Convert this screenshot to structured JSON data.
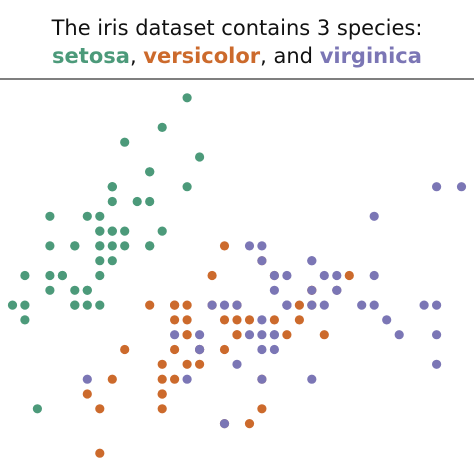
{
  "title": {
    "line1": "The iris dataset contains 3 species:",
    "setosa": "setosa",
    "sep1": ", ",
    "versicolor": "versicolor",
    "sep2": ", and ",
    "virginica": "virginica"
  },
  "colors": {
    "setosa": "#4c9a7a",
    "versicolor": "#cc6a2c",
    "virginica": "#7b76b5",
    "axis_line": "#333333"
  },
  "chart_data": {
    "type": "scatter",
    "title": "The iris dataset contains 3 species: setosa, versicolor, and virginica",
    "xlabel": "",
    "ylabel": "",
    "xlim": [
      4.2,
      8.0
    ],
    "ylim": [
      1.9,
      4.5
    ],
    "grid": false,
    "legend": "none",
    "series": [
      {
        "name": "setosa",
        "points": [
          [
            5.1,
            3.5
          ],
          [
            4.9,
            3.0
          ],
          [
            4.7,
            3.2
          ],
          [
            4.6,
            3.1
          ],
          [
            5.0,
            3.6
          ],
          [
            5.4,
            3.9
          ],
          [
            4.6,
            3.4
          ],
          [
            5.0,
            3.4
          ],
          [
            4.4,
            2.9
          ],
          [
            4.9,
            3.1
          ],
          [
            5.4,
            3.7
          ],
          [
            4.8,
            3.4
          ],
          [
            4.8,
            3.0
          ],
          [
            4.3,
            3.0
          ],
          [
            5.8,
            4.0
          ],
          [
            5.7,
            4.4
          ],
          [
            5.4,
            3.9
          ],
          [
            5.1,
            3.5
          ],
          [
            5.7,
            3.8
          ],
          [
            5.1,
            3.8
          ],
          [
            5.4,
            3.4
          ],
          [
            5.1,
            3.7
          ],
          [
            4.6,
            3.6
          ],
          [
            5.1,
            3.3
          ],
          [
            4.8,
            3.4
          ],
          [
            5.0,
            3.0
          ],
          [
            5.0,
            3.4
          ],
          [
            5.2,
            3.5
          ],
          [
            5.2,
            3.4
          ],
          [
            4.7,
            3.2
          ],
          [
            4.8,
            3.1
          ],
          [
            5.4,
            3.4
          ],
          [
            5.2,
            4.1
          ],
          [
            5.5,
            4.2
          ],
          [
            4.9,
            3.1
          ],
          [
            5.0,
            3.2
          ],
          [
            5.5,
            3.5
          ],
          [
            4.9,
            3.6
          ],
          [
            4.4,
            3.0
          ],
          [
            5.1,
            3.4
          ],
          [
            5.0,
            3.5
          ],
          [
            4.5,
            2.3
          ],
          [
            4.4,
            3.2
          ],
          [
            5.0,
            3.5
          ],
          [
            5.1,
            3.8
          ],
          [
            4.8,
            3.0
          ],
          [
            5.1,
            3.8
          ],
          [
            4.6,
            3.2
          ],
          [
            5.3,
            3.7
          ],
          [
            5.0,
            3.3
          ]
        ]
      },
      {
        "name": "versicolor",
        "points": [
          [
            7.0,
            3.2
          ],
          [
            6.4,
            3.2
          ],
          [
            6.9,
            3.1
          ],
          [
            5.5,
            2.3
          ],
          [
            6.5,
            2.8
          ],
          [
            5.7,
            2.8
          ],
          [
            6.3,
            3.3
          ],
          [
            4.9,
            2.4
          ],
          [
            6.6,
            2.9
          ],
          [
            5.2,
            2.7
          ],
          [
            5.0,
            2.0
          ],
          [
            5.9,
            3.0
          ],
          [
            6.0,
            2.2
          ],
          [
            6.1,
            2.9
          ],
          [
            5.6,
            2.9
          ],
          [
            6.7,
            3.1
          ],
          [
            5.6,
            3.0
          ],
          [
            5.8,
            2.7
          ],
          [
            6.2,
            2.2
          ],
          [
            5.6,
            2.5
          ],
          [
            5.9,
            3.2
          ],
          [
            6.1,
            2.8
          ],
          [
            6.3,
            2.5
          ],
          [
            6.1,
            2.8
          ],
          [
            6.4,
            2.9
          ],
          [
            6.6,
            3.0
          ],
          [
            6.8,
            2.8
          ],
          [
            6.7,
            3.0
          ],
          [
            6.0,
            2.9
          ],
          [
            5.7,
            2.6
          ],
          [
            5.5,
            2.4
          ],
          [
            5.5,
            2.4
          ],
          [
            5.8,
            2.7
          ],
          [
            6.0,
            2.7
          ],
          [
            5.4,
            3.0
          ],
          [
            6.0,
            3.4
          ],
          [
            6.7,
            3.1
          ],
          [
            6.3,
            2.3
          ],
          [
            5.6,
            3.0
          ],
          [
            5.5,
            2.5
          ],
          [
            5.5,
            2.6
          ],
          [
            6.1,
            3.0
          ],
          [
            5.8,
            2.6
          ],
          [
            5.0,
            2.3
          ],
          [
            5.6,
            2.7
          ],
          [
            5.7,
            3.0
          ],
          [
            5.7,
            2.9
          ],
          [
            6.2,
            2.9
          ],
          [
            5.1,
            2.5
          ],
          [
            5.7,
            2.8
          ]
        ]
      },
      {
        "name": "virginica",
        "points": [
          [
            6.3,
            3.3
          ],
          [
            5.8,
            2.7
          ],
          [
            7.1,
            3.0
          ],
          [
            6.3,
            2.9
          ],
          [
            6.5,
            3.0
          ],
          [
            7.6,
            3.0
          ],
          [
            4.9,
            2.5
          ],
          [
            7.3,
            2.9
          ],
          [
            6.7,
            2.5
          ],
          [
            7.2,
            3.6
          ],
          [
            6.5,
            3.2
          ],
          [
            6.4,
            2.7
          ],
          [
            6.8,
            3.0
          ],
          [
            5.7,
            2.5
          ],
          [
            5.8,
            2.8
          ],
          [
            6.4,
            3.2
          ],
          [
            6.5,
            3.0
          ],
          [
            7.7,
            3.8
          ],
          [
            7.7,
            2.6
          ],
          [
            6.0,
            2.2
          ],
          [
            6.9,
            3.2
          ],
          [
            5.6,
            2.8
          ],
          [
            7.7,
            2.8
          ],
          [
            6.3,
            2.7
          ],
          [
            6.7,
            3.3
          ],
          [
            7.2,
            3.2
          ],
          [
            6.2,
            2.8
          ],
          [
            6.1,
            3.0
          ],
          [
            6.4,
            2.8
          ],
          [
            7.2,
            3.0
          ],
          [
            7.4,
            2.8
          ],
          [
            7.9,
            3.8
          ],
          [
            6.4,
            2.8
          ],
          [
            6.3,
            2.8
          ],
          [
            6.1,
            2.6
          ],
          [
            7.7,
            3.0
          ],
          [
            6.3,
            3.4
          ],
          [
            6.4,
            3.1
          ],
          [
            6.0,
            3.0
          ],
          [
            6.9,
            3.1
          ],
          [
            6.7,
            3.1
          ],
          [
            6.9,
            3.1
          ],
          [
            5.8,
            2.7
          ],
          [
            6.8,
            3.2
          ],
          [
            6.7,
            3.3
          ],
          [
            6.7,
            3.0
          ],
          [
            6.3,
            2.5
          ],
          [
            6.5,
            3.0
          ],
          [
            6.2,
            3.4
          ],
          [
            5.9,
            3.0
          ]
        ]
      }
    ]
  }
}
